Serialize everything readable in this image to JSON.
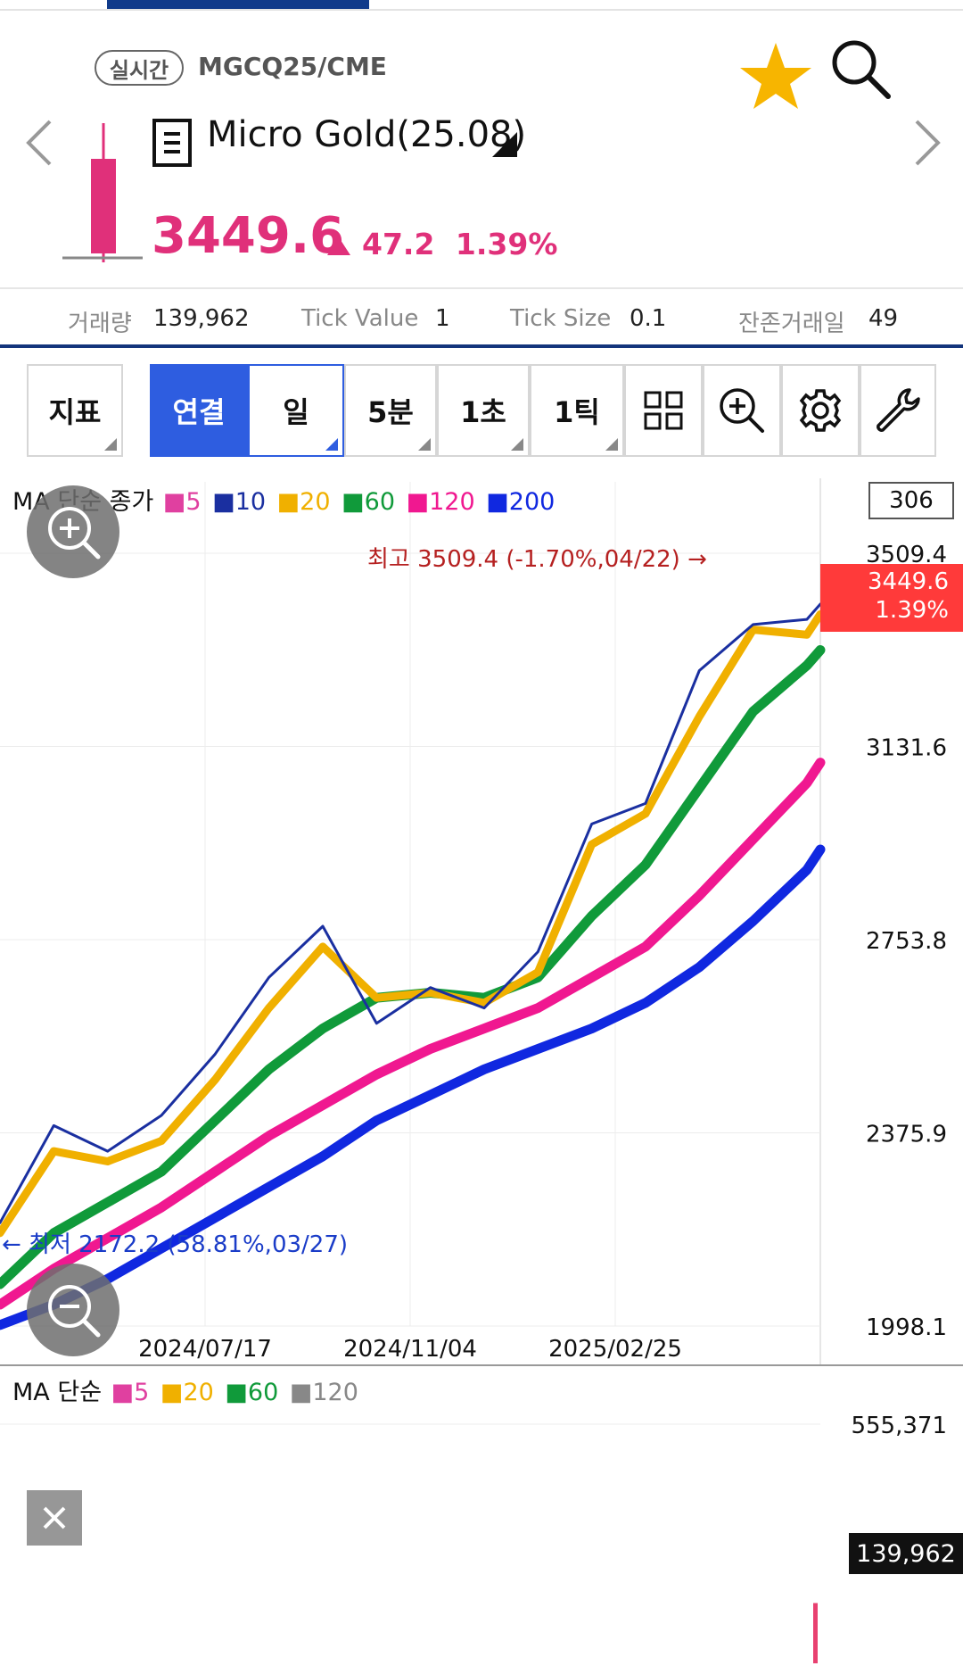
{
  "header": {
    "live_badge": "실시간",
    "symbol_code": "MGCQ25/CME",
    "instrument_name": "Micro Gold(25.08)",
    "price": "3449.6",
    "change": "47.2",
    "change_pct": "1.39%",
    "icons": [
      "star-icon",
      "search-icon",
      "chevron-left-icon",
      "chevron-right-icon",
      "candle-icon",
      "list-menu-icon",
      "dropdown-icon",
      "price-up-icon"
    ],
    "colors": {
      "up": "#e0307a",
      "favorite": "#f7b500",
      "accent": "#13357c"
    }
  },
  "info_bar": {
    "volume_label": "거래량",
    "volume_value": "139,962",
    "tick_value_label": "Tick Value",
    "tick_value": "1",
    "tick_size_label": "Tick Size",
    "tick_size": "0.1",
    "days_left_label": "잔존거래일",
    "days_left_value": "49"
  },
  "toolbar": {
    "indicator_label": "지표",
    "continuous_label": "연결",
    "day_label": "일",
    "min5_label": "5분",
    "sec1_label": "1초",
    "tick1_label": "1틱",
    "icons": [
      "grid-icon",
      "zoom-in-icon",
      "gear-icon",
      "wrench-icon"
    ]
  },
  "price_chart": {
    "legend_title": "MA 단순 종가",
    "count_box": "306",
    "ma_series": [
      {
        "name": "5",
        "color": "#e040a0"
      },
      {
        "name": "10",
        "color": "#1a2fa0"
      },
      {
        "name": "20",
        "color": "#f0b000"
      },
      {
        "name": "60",
        "color": "#109a3a"
      },
      {
        "name": "120",
        "color": "#f01890"
      },
      {
        "name": "200",
        "color": "#1028e0"
      }
    ],
    "high_note": "최고 3509.4 (-1.70%,04/22) →",
    "low_note": "← 최저 2172.2 (58.81%,03/27)",
    "current_price": "3449.6",
    "current_pct": "1.39%"
  },
  "volume_chart": {
    "legend_title": "MA 단순",
    "ma_series": [
      {
        "name": "5",
        "color": "#e040a0"
      },
      {
        "name": "20",
        "color": "#f0b000"
      },
      {
        "name": "60",
        "color": "#109a3a"
      },
      {
        "name": "120",
        "color": "#888888"
      }
    ],
    "current_volume": "139,962"
  },
  "chart_data": [
    {
      "type": "line",
      "title": "",
      "xlabel": "",
      "ylabel": "",
      "x_tick_labels": [
        "2024/07/17",
        "2024/11/04",
        "2025/02/25"
      ],
      "y_tick_labels": [
        "3509.4",
        "3131.6",
        "2753.8",
        "2375.9",
        "1998.1"
      ],
      "ylim": [
        1998.1,
        3509.4
      ],
      "grid": true,
      "legend": "top-left",
      "x": [
        0,
        20,
        40,
        60,
        80,
        100,
        120,
        140,
        160,
        180,
        200,
        220,
        240,
        260,
        280,
        300,
        305
      ],
      "series": [
        {
          "name": "10",
          "values": [
            2200,
            2390,
            2340,
            2410,
            2530,
            2680,
            2780,
            2590,
            2660,
            2620,
            2730,
            2980,
            3020,
            3280,
            3370,
            3380,
            3410
          ]
        },
        {
          "name": "20",
          "values": [
            2180,
            2340,
            2320,
            2360,
            2480,
            2620,
            2740,
            2640,
            2650,
            2630,
            2690,
            2940,
            3000,
            3190,
            3360,
            3350,
            3390
          ]
        },
        {
          "name": "60",
          "values": [
            2080,
            2180,
            2240,
            2300,
            2400,
            2500,
            2580,
            2640,
            2650,
            2640,
            2680,
            2800,
            2900,
            3050,
            3200,
            3290,
            3320
          ]
        },
        {
          "name": "120",
          "values": [
            2040,
            2110,
            2170,
            2230,
            2300,
            2370,
            2430,
            2490,
            2540,
            2580,
            2620,
            2680,
            2740,
            2840,
            2950,
            3060,
            3100
          ]
        },
        {
          "name": "200",
          "values": [
            2000,
            2040,
            2090,
            2150,
            2210,
            2270,
            2330,
            2400,
            2450,
            2500,
            2540,
            2580,
            2630,
            2700,
            2790,
            2890,
            2930
          ]
        }
      ]
    },
    {
      "type": "bar",
      "title": "",
      "y_tick_labels": [
        "555,371"
      ],
      "ylim": [
        0,
        555371
      ],
      "series": [
        {
          "name": "volume",
          "last_value": 139962
        }
      ]
    }
  ]
}
